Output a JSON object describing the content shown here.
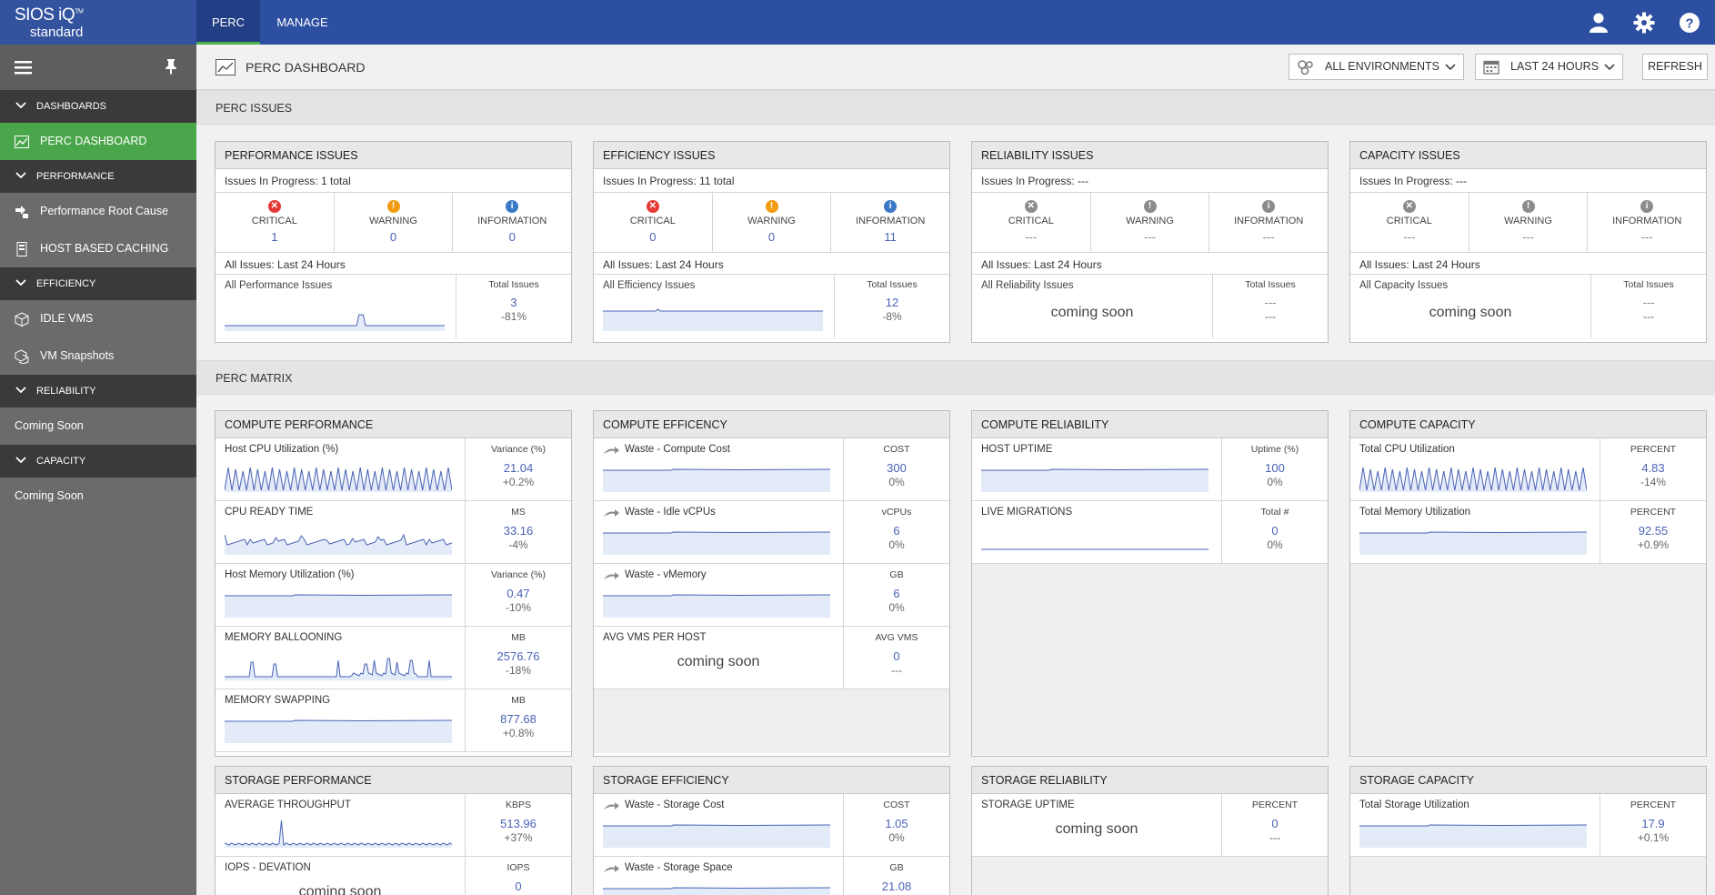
{
  "brand": {
    "name": "SIOS iQ",
    "tm": "TM",
    "edition": "standard"
  },
  "topnav": {
    "tabs": [
      "PERC",
      "MANAGE"
    ]
  },
  "sidebar": {
    "sections": [
      {
        "label": "DASHBOARDS",
        "items": [
          {
            "label": "PERC DASHBOARD",
            "icon": "chart-icon",
            "active": true
          }
        ]
      },
      {
        "label": "PERFORMANCE",
        "items": [
          {
            "label": "Performance Root Cause",
            "icon": "root-cause-icon"
          },
          {
            "label": "HOST BASED CACHING",
            "icon": "cache-icon"
          }
        ]
      },
      {
        "label": "EFFICIENCY",
        "items": [
          {
            "label": "IDLE VMS",
            "icon": "cube-icon"
          },
          {
            "label": "VM Snapshots",
            "icon": "snapshot-icon"
          }
        ]
      },
      {
        "label": "RELIABILITY",
        "plain": "Coming Soon"
      },
      {
        "label": "CAPACITY",
        "plain": "Coming Soon"
      }
    ]
  },
  "header": {
    "title": "PERC DASHBOARD",
    "env_label": "ALL ENVIRONMENTS",
    "range_label": "LAST 24 HOURS",
    "refresh_label": "REFRESH"
  },
  "sections": {
    "issues": "PERC ISSUES",
    "matrix": "PERC MATRIX"
  },
  "severity_labels": {
    "critical": "CRITICAL",
    "warning": "WARNING",
    "information": "INFORMATION"
  },
  "issues": [
    {
      "title": "PERFORMANCE ISSUES",
      "in_progress": "Issues In Progress: 1 total",
      "critical": "1",
      "warning": "0",
      "information": "0",
      "all_label": "All Issues: Last 24 Hours",
      "chart_label": "All Performance Issues",
      "total_label": "Total Issues",
      "total": "3",
      "change": "-81%",
      "active": true
    },
    {
      "title": "EFFICIENCY ISSUES",
      "in_progress": "Issues In Progress: 11 total",
      "critical": "0",
      "warning": "0",
      "information": "11",
      "all_label": "All Issues: Last 24 Hours",
      "chart_label": "All Efficiency Issues",
      "total_label": "Total Issues",
      "total": "12",
      "change": "-8%",
      "active": true
    },
    {
      "title": "RELIABILITY ISSUES",
      "in_progress": "Issues In Progress: ---",
      "critical": "---",
      "warning": "---",
      "information": "---",
      "all_label": "All Issues: Last 24 Hours",
      "chart_label": "All Reliability Issues",
      "coming": "coming soon",
      "total_label": "Total Issues",
      "total": "---",
      "change": "---",
      "active": false
    },
    {
      "title": "CAPACITY ISSUES",
      "in_progress": "Issues In Progress: ---",
      "critical": "---",
      "warning": "---",
      "information": "---",
      "all_label": "All Issues: Last 24 Hours",
      "chart_label": "All Capacity Issues",
      "coming": "coming soon",
      "total_label": "Total Issues",
      "total": "---",
      "change": "---",
      "active": false
    }
  ],
  "matrix_top": [
    {
      "title": "COMPUTE PERFORMANCE",
      "rows": [
        {
          "label": "Host CPU Utilization (%)",
          "unit": "Variance (%)",
          "value": "21.04",
          "change": "+0.2%",
          "spark": "spiky"
        },
        {
          "label": "CPU READY TIME",
          "unit": "MS",
          "value": "33.16",
          "change": "-4%",
          "spark": "noisy"
        },
        {
          "label": "Host Memory Utilization (%)",
          "unit": "Variance (%)",
          "value": "0.47",
          "change": "-10%",
          "spark": "flat"
        },
        {
          "label": "MEMORY BALLOONING",
          "unit": "MB",
          "value": "2576.76",
          "change": "-18%",
          "spark": "balloon"
        },
        {
          "label": "MEMORY SWAPPING",
          "unit": "MB",
          "value": "877.68",
          "change": "+0.8%",
          "spark": "flat"
        }
      ]
    },
    {
      "title": "COMPUTE EFFICENCY",
      "rows": [
        {
          "label": "Waste - Compute Cost",
          "unit": "COST",
          "value": "300",
          "change": "0%",
          "spark": "flat",
          "arrow": true
        },
        {
          "label": "Waste - Idle vCPUs",
          "unit": "vCPUs",
          "value": "6",
          "change": "0%",
          "spark": "flat",
          "arrow": true
        },
        {
          "label": "Waste - vMemory",
          "unit": "GB",
          "value": "6",
          "change": "0%",
          "spark": "flat",
          "arrow": true
        },
        {
          "label": "AVG VMS PER HOST",
          "unit": "AVG VMS",
          "value": "0",
          "change": "---",
          "coming": "coming soon"
        }
      ]
    },
    {
      "title": "COMPUTE RELIABILITY",
      "rows": [
        {
          "label": "HOST UPTIME",
          "unit": "Uptime (%)",
          "value": "100",
          "change": "0%",
          "spark": "flat"
        },
        {
          "label": "LIVE MIGRATIONS",
          "unit": "Total #",
          "value": "0",
          "change": "0%",
          "spark": "line"
        }
      ]
    },
    {
      "title": "COMPUTE CAPACITY",
      "rows": [
        {
          "label": "Total CPU Utilization",
          "unit": "PERCENT",
          "value": "4.83",
          "change": "-14%",
          "spark": "spiky"
        },
        {
          "label": "Total Memory Utilization",
          "unit": "PERCENT",
          "value": "92.55",
          "change": "+0.9%",
          "spark": "flat"
        }
      ]
    }
  ],
  "matrix_bottom": [
    {
      "title": "STORAGE PERFORMANCE",
      "rows": [
        {
          "label": "AVERAGE THROUGHPUT",
          "unit": "KBPS",
          "value": "513.96",
          "change": "+37%",
          "spark": "throughput"
        },
        {
          "label": "IOPS - DEVATION",
          "unit": "IOPS",
          "value": "0",
          "change": "",
          "coming": "coming soon"
        }
      ]
    },
    {
      "title": "STORAGE EFFICIENCY",
      "rows": [
        {
          "label": "Waste - Storage Cost",
          "unit": "COST",
          "value": "1.05",
          "change": "0%",
          "spark": "flat",
          "arrow": true
        },
        {
          "label": "Waste - Storage Space",
          "unit": "GB",
          "value": "21.08",
          "change": "",
          "spark": "flat",
          "arrow": true
        }
      ]
    },
    {
      "title": "STORAGE RELIABILITY",
      "rows": [
        {
          "label": "STORAGE UPTIME",
          "unit": "PERCENT",
          "value": "0",
          "change": "---",
          "coming": "coming soon"
        }
      ]
    },
    {
      "title": "STORAGE CAPACITY",
      "rows": [
        {
          "label": "Total Storage Utilization",
          "unit": "PERCENT",
          "value": "17.9",
          "change": "+0.1%",
          "spark": "flat"
        }
      ]
    }
  ],
  "colors": {
    "topbar": "#2d4fa1",
    "active_green": "#4aa64b",
    "critical": "#e53935",
    "warning": "#f39c12",
    "info": "#3a79c6",
    "value_blue": "#4a63b6"
  }
}
